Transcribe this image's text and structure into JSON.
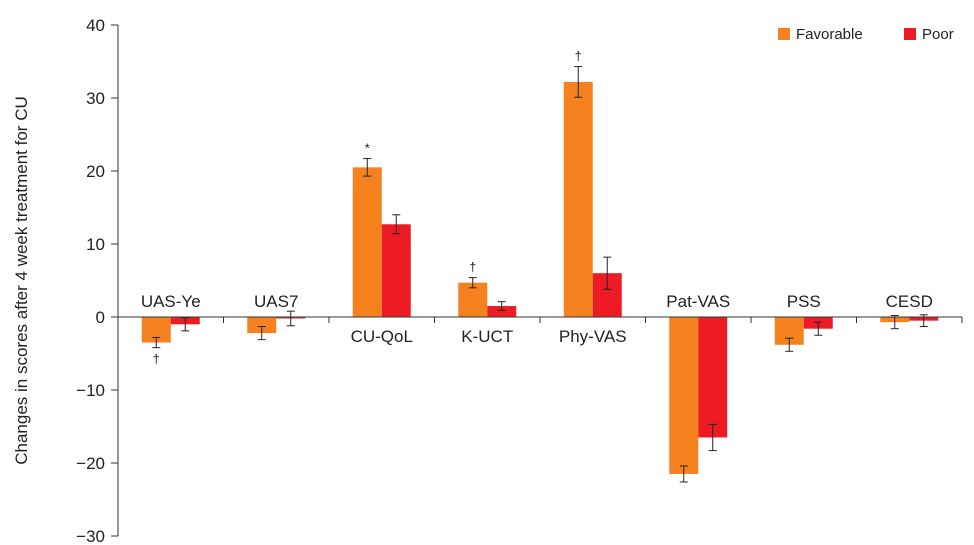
{
  "chart_data": {
    "type": "bar",
    "title": "",
    "xlabel": "",
    "ylabel": "Changes in scores after 4 week treatment for CU",
    "ylim": [
      -30,
      40
    ],
    "yticks": [
      40,
      30,
      20,
      10,
      0,
      -10,
      -20,
      -30
    ],
    "ytick_labels": [
      "40",
      "30",
      "20",
      "10",
      "0",
      "−10",
      "−20",
      "−30"
    ],
    "categories": [
      "UAS-Ye",
      "UAS7",
      "CU-QoL",
      "K-UCT",
      "Phy-VAS",
      "Pat-VAS",
      "PSS",
      "CESD"
    ],
    "series": [
      {
        "name": "Favorable",
        "color": "#f5821f",
        "values": [
          -3.5,
          -2.2,
          20.5,
          4.7,
          32.2,
          -21.5,
          -3.8,
          -0.7
        ],
        "errors": [
          0.7,
          0.9,
          1.2,
          0.7,
          2.1,
          1.1,
          0.9,
          0.9
        ]
      },
      {
        "name": "Poor",
        "color": "#ed1c24",
        "values": [
          -1.0,
          -0.2,
          12.7,
          1.5,
          6.0,
          -16.5,
          -1.6,
          -0.5
        ],
        "errors": [
          0.9,
          1.0,
          1.3,
          0.6,
          2.2,
          1.8,
          0.9,
          0.8
        ]
      }
    ],
    "significance": [
      {
        "category": "UAS-Ye",
        "mark": "†",
        "position": "below"
      },
      {
        "category": "CU-QoL",
        "mark": "*",
        "position": "above"
      },
      {
        "category": "K-UCT",
        "mark": "†",
        "position": "above"
      },
      {
        "category": "Phy-VAS",
        "mark": "†",
        "position": "above"
      }
    ],
    "legend": {
      "placement": "top-right",
      "entries": [
        "Favorable",
        "Poor"
      ]
    },
    "grid": false
  }
}
